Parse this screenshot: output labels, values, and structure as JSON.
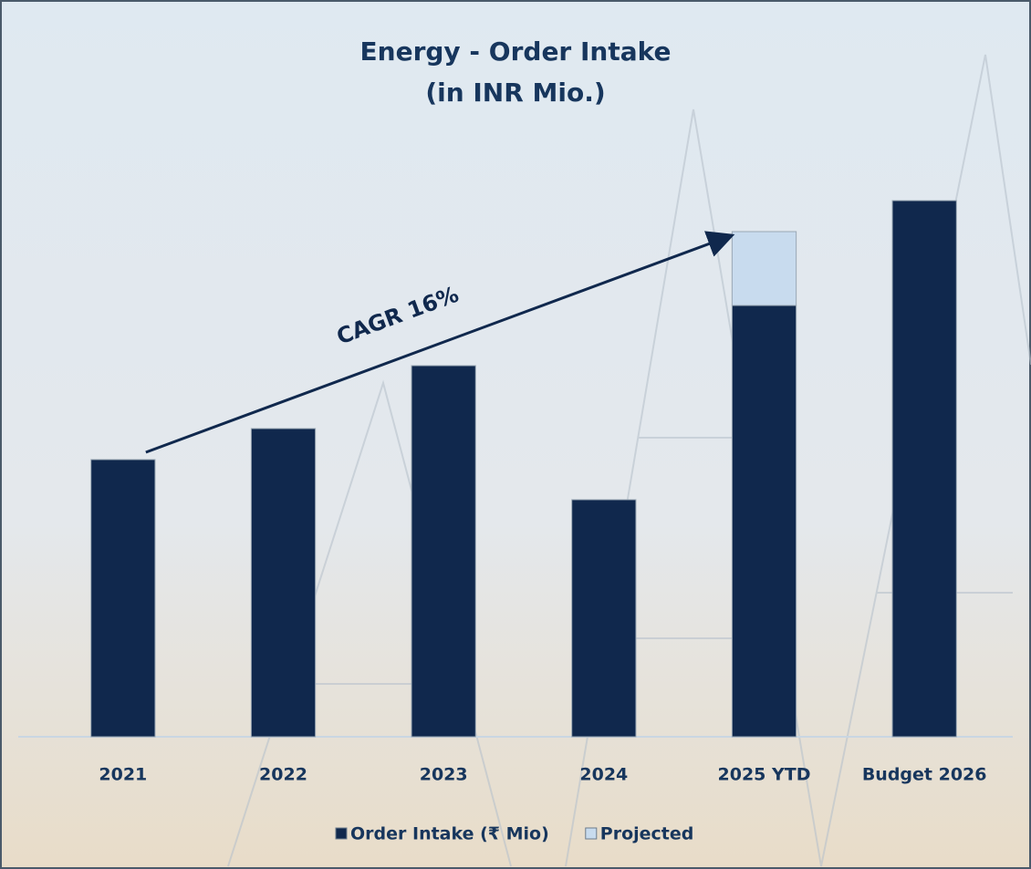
{
  "chart_data": {
    "type": "bar",
    "stacked": true,
    "title": "Energy - Order Intake",
    "subtitle": "(in INR Mio.)",
    "categories": [
      "2021",
      "2022",
      "2023",
      "2024",
      "2025 YTD",
      "Budget 2026"
    ],
    "series": [
      {
        "name": "Order Intake (₹ Mio)",
        "color": "#10284d",
        "values": [
          304,
          338,
          407,
          260,
          473,
          588
        ]
      },
      {
        "name": "Projected",
        "color": "#c8dbee",
        "values": [
          null,
          null,
          null,
          null,
          81,
          null
        ]
      }
    ],
    "ylim": [
      0,
      650
    ],
    "annotation": "CAGR 16%"
  }
}
